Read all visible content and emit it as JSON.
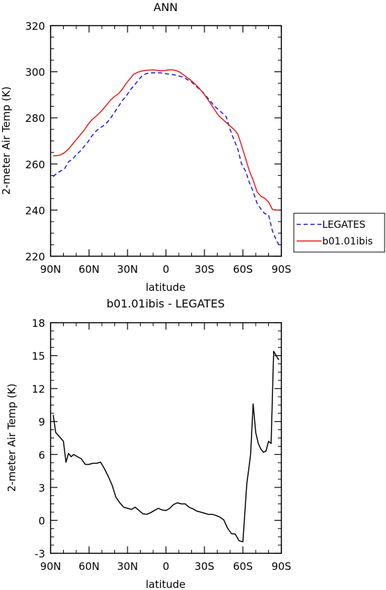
{
  "chart_data": [
    {
      "type": "line",
      "title": "ANN",
      "xlabel": "latitude",
      "ylabel": "2-meter Air Temp (K)",
      "ylim": [
        220,
        320
      ],
      "yticks": [
        220,
        240,
        260,
        280,
        300,
        320
      ],
      "xlim": [
        90,
        -90
      ],
      "xtick_values": [
        90,
        60,
        30,
        0,
        -30,
        -60,
        -90
      ],
      "xtick_labels": [
        "90N",
        "60N",
        "30N",
        "0",
        "30S",
        "60S",
        "90S"
      ],
      "legend": "right",
      "series": [
        {
          "name": "LEGATES",
          "color": "#1a1adb",
          "style": "dashed",
          "x": [
            88,
            85,
            82,
            79,
            76,
            73,
            70,
            67,
            64,
            61,
            58,
            55,
            52,
            49,
            46,
            43,
            40,
            37,
            34,
            31,
            28,
            25,
            22,
            19,
            16,
            13,
            10,
            7,
            4,
            1,
            -2,
            -5,
            -8,
            -11,
            -14,
            -17,
            -20,
            -23,
            -26,
            -29,
            -32,
            -35,
            -38,
            -41,
            -44,
            -47,
            -50,
            -53,
            -56,
            -59,
            -62,
            -65,
            -68,
            -71,
            -74,
            -77,
            -80,
            -83,
            -86,
            -88
          ],
          "y": [
            254.5,
            256,
            257,
            258,
            261,
            262,
            264,
            265.5,
            267.5,
            269.5,
            272,
            274,
            275.5,
            276.5,
            278,
            280,
            282.5,
            285,
            287.5,
            289.5,
            292,
            294,
            296,
            298,
            299,
            299.5,
            299.5,
            299.5,
            299.5,
            299.2,
            299,
            298.8,
            298.5,
            298,
            297.5,
            296.5,
            295.5,
            294,
            292.5,
            291,
            289,
            287,
            285,
            283.5,
            282,
            280.5,
            275,
            270.5,
            266.5,
            260,
            257,
            252,
            248,
            243,
            240.5,
            238.5,
            238,
            231,
            227,
            225
          ]
        },
        {
          "name": "b01.01ibis",
          "color": "#e8191c",
          "style": "solid",
          "x": [
            88,
            85,
            82,
            79,
            76,
            73,
            70,
            67,
            64,
            61,
            58,
            55,
            52,
            49,
            46,
            43,
            40,
            37,
            34,
            31,
            28,
            25,
            22,
            19,
            16,
            13,
            10,
            7,
            4,
            1,
            -2,
            -5,
            -8,
            -11,
            -14,
            -17,
            -20,
            -23,
            -26,
            -29,
            -32,
            -35,
            -38,
            -41,
            -44,
            -47,
            -50,
            -53,
            -56,
            -59,
            -62,
            -65,
            -68,
            -71,
            -74,
            -77,
            -80,
            -83,
            -86,
            -88
          ],
          "y": [
            263.5,
            263.6,
            264,
            265,
            266.5,
            268.5,
            270.5,
            272.5,
            274.5,
            277,
            279,
            280.5,
            282,
            283.8,
            285.8,
            287.8,
            289.3,
            290.5,
            292.5,
            295,
            297,
            299,
            299.8,
            300.3,
            300.6,
            300.7,
            300.8,
            300.6,
            300.4,
            300.5,
            300.8,
            300.8,
            300.5,
            299.8,
            298.5,
            297.3,
            296,
            294.5,
            292.8,
            290.8,
            288.5,
            286,
            283.5,
            281,
            279.5,
            278,
            276.5,
            275,
            273,
            268,
            262.5,
            257,
            253,
            248,
            246,
            245.2,
            243.5,
            240.3,
            240,
            240
          ]
        }
      ]
    },
    {
      "type": "line",
      "title": "b01.01ibis - LEGATES",
      "xlabel": "latitude",
      "ylabel": "2-meter Air Temp (K)",
      "ylim": [
        -3,
        18
      ],
      "yticks": [
        -3,
        0,
        3,
        6,
        9,
        12,
        15,
        18
      ],
      "xlim": [
        90,
        -90
      ],
      "xtick_values": [
        90,
        60,
        30,
        0,
        -30,
        -60,
        -90
      ],
      "xtick_labels": [
        "90N",
        "60N",
        "30N",
        "0",
        "30S",
        "60S",
        "90S"
      ],
      "series": [
        {
          "color": "#000000",
          "style": "solid",
          "x": [
            88,
            86,
            83,
            80,
            78,
            76,
            74,
            72,
            69,
            66,
            63,
            60,
            57,
            54,
            51,
            48,
            45,
            42,
            39,
            36,
            33,
            30,
            27,
            24,
            21,
            18,
            15,
            12,
            9,
            6,
            3,
            0,
            -3,
            -6,
            -9,
            -12,
            -15,
            -18,
            -21,
            -24,
            -27,
            -30,
            -33,
            -36,
            -39,
            -42,
            -45,
            -48,
            -51,
            -54,
            -57,
            -60,
            -63,
            -65,
            -66,
            -68,
            -70,
            -72,
            -74,
            -76,
            -78,
            -80,
            -82,
            -84,
            -86,
            -88
          ],
          "y": [
            9.6,
            8,
            7.6,
            7.2,
            5.3,
            6.1,
            5.8,
            6.0,
            5.8,
            5.6,
            5.1,
            5.1,
            5.2,
            5.2,
            5.3,
            4.7,
            4.0,
            3.2,
            2.1,
            1.6,
            1.2,
            1.1,
            1.0,
            1.2,
            0.9,
            0.6,
            0.55,
            0.7,
            0.9,
            1.1,
            0.95,
            0.9,
            1.1,
            1.45,
            1.6,
            1.5,
            1.5,
            1.2,
            1.05,
            0.85,
            0.75,
            0.65,
            0.55,
            0.55,
            0.45,
            0.3,
            0.05,
            -0.7,
            -1.2,
            -1.25,
            -1.85,
            -1.95,
            3.3,
            5.1,
            6.0,
            10.6,
            8.0,
            7.0,
            6.5,
            6.2,
            6.3,
            7.2,
            7.0,
            15.4,
            15.0,
            14.6
          ]
        }
      ]
    }
  ]
}
